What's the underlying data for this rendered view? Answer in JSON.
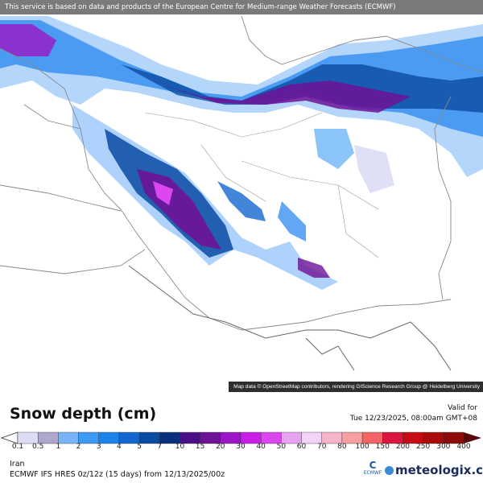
{
  "banner": "This service is based on data and products of the European Centre for Medium-range Weather Forecasts (ECMWF)",
  "attribution": "Map data © OpenStreetMap contributors, rendering GIScience Research Group @ Heidelberg University",
  "legend": {
    "title": "Snow depth (cm)",
    "valid_label": "Valid for",
    "valid_time": "Tue 12/23/2025, 08:00am GMT+08",
    "ticks": [
      "0.1",
      "0.5",
      "1",
      "2",
      "3",
      "4",
      "5",
      "7",
      "10",
      "15",
      "20",
      "30",
      "40",
      "50",
      "60",
      "70",
      "80",
      "100",
      "150",
      "200",
      "250",
      "300",
      "400"
    ],
    "colors": [
      "#dcdcf5",
      "#aca8cc",
      "#78b4f8",
      "#3c9cf5",
      "#1e82ee",
      "#1466d0",
      "#0a4ba2",
      "#0a2f7c",
      "#4a0f88",
      "#6e1296",
      "#9a16c6",
      "#c81ee8",
      "#dc46f0",
      "#e6a4f0",
      "#f2d4f6",
      "#f6b4c8",
      "#f6a0a0",
      "#f46464",
      "#dc1440",
      "#c80a14",
      "#aa0a0a",
      "#8c0a0a"
    ],
    "under_color": "#ffffff",
    "over_color": "#5a0508"
  },
  "footer": {
    "region": "Iran",
    "model": "ECMWF IFS HRES 0z/12z (15 days) from  12/13/2025/00z",
    "ecmwf_logo": "ECMWF",
    "brand": "meteologix.com"
  }
}
